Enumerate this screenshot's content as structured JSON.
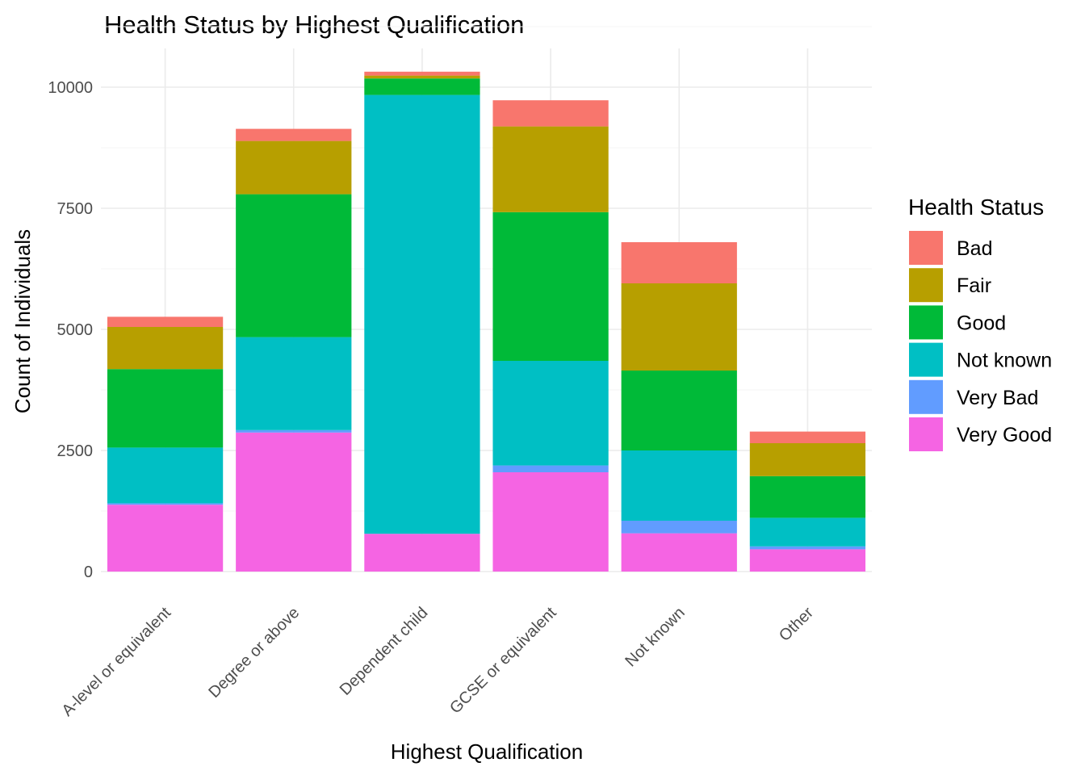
{
  "chart_data": {
    "type": "bar",
    "stacked": true,
    "title": "Health Status by Highest Qualification",
    "xlabel": "Highest Qualification",
    "ylabel": "Count of Individuals",
    "ylim": [
      0,
      10800
    ],
    "yticks": [
      0,
      2500,
      5000,
      7500,
      10000
    ],
    "grid": true,
    "legend_title": "Health Status",
    "legend_position": "right",
    "categories": [
      "A-level or equivalent",
      "Degree or above",
      "Dependent child",
      "GCSE or equivalent",
      "Not known",
      "Other"
    ],
    "series": [
      {
        "name": "Very Good",
        "color": "#F564E3",
        "values": [
          1380,
          2870,
          780,
          2050,
          790,
          460
        ]
      },
      {
        "name": "Very Bad",
        "color": "#619CFF",
        "values": [
          30,
          50,
          0,
          140,
          260,
          60
        ]
      },
      {
        "name": "Not known",
        "color": "#00BFC4",
        "values": [
          1150,
          1920,
          9060,
          2160,
          1450,
          590
        ]
      },
      {
        "name": "Good",
        "color": "#00BA38",
        "values": [
          1620,
          2950,
          340,
          3070,
          1650,
          860
        ]
      },
      {
        "name": "Fair",
        "color": "#B79F00",
        "values": [
          870,
          1100,
          60,
          1770,
          1800,
          680
        ]
      },
      {
        "name": "Bad",
        "color": "#F8766D",
        "values": [
          210,
          250,
          80,
          540,
          850,
          240
        ]
      }
    ],
    "legend_order": [
      "Bad",
      "Fair",
      "Good",
      "Not known",
      "Very Bad",
      "Very Good"
    ]
  }
}
